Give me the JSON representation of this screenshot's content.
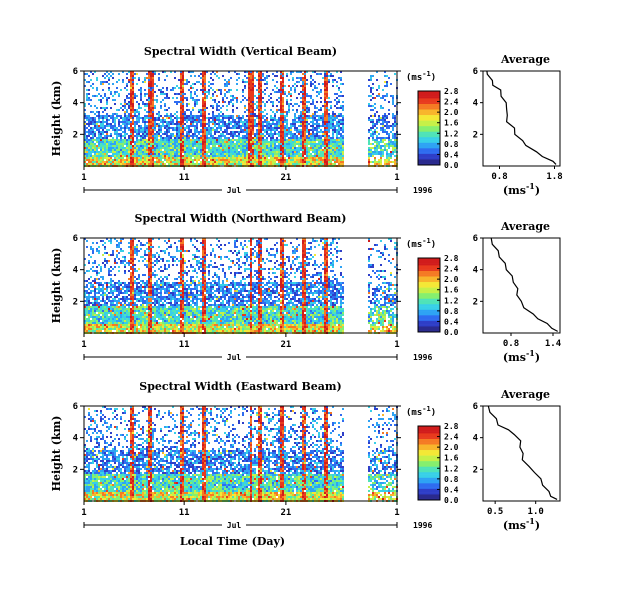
{
  "chart_data": [
    {
      "type": "heatmap",
      "title": "Spectral Width (Vertical Beam)",
      "ylabel": "Height (km)",
      "yticks": [
        "6",
        "4",
        "2"
      ],
      "ylim": [
        0,
        6
      ],
      "xticks": [
        "1",
        "11",
        "21",
        "1"
      ],
      "month_label": "Jul",
      "year_label": "1996",
      "colorbar": {
        "unit": "(ms",
        "unit_exp": "-1",
        "unit_close": ")",
        "ticks": [
          "2.8",
          "2.4",
          "2.0",
          "1.6",
          "1.2",
          "0.8",
          "0.4",
          "0.0"
        ],
        "range": [
          0,
          2.8
        ]
      },
      "profile": {
        "title": "Average",
        "xticks": [
          "0.8",
          "1.8"
        ],
        "xlim": [
          0.5,
          1.9
        ],
        "yticks": [
          "6",
          "4",
          "2"
        ],
        "xlabel": "(ms",
        "xlabel_exp": "-1",
        "xlabel_close": ")",
        "points": [
          [
            0.55,
            6.0
          ],
          [
            0.6,
            5.8
          ],
          [
            0.65,
            5.4
          ],
          [
            0.7,
            5.1
          ],
          [
            0.8,
            4.8
          ],
          [
            0.85,
            4.4
          ],
          [
            0.9,
            4.0
          ],
          [
            0.95,
            3.6
          ],
          [
            0.92,
            3.2
          ],
          [
            0.95,
            2.8
          ],
          [
            1.05,
            2.4
          ],
          [
            1.1,
            2.0
          ],
          [
            1.2,
            1.6
          ],
          [
            1.3,
            1.3
          ],
          [
            1.45,
            0.9
          ],
          [
            1.6,
            0.6
          ],
          [
            1.75,
            0.3
          ],
          [
            1.85,
            0.1
          ]
        ]
      }
    },
    {
      "type": "heatmap",
      "title": "Spectral Width (Northward Beam)",
      "ylabel": "Height (km)",
      "yticks": [
        "6",
        "4",
        "2"
      ],
      "ylim": [
        0,
        6
      ],
      "xticks": [
        "1",
        "11",
        "21",
        "1"
      ],
      "month_label": "Jul",
      "year_label": "1996",
      "colorbar": {
        "unit": "(ms",
        "unit_exp": "-1",
        "unit_close": ")",
        "ticks": [
          "2.8",
          "2.4",
          "2.0",
          "1.6",
          "1.2",
          "0.8",
          "0.4",
          "0.0"
        ],
        "range": [
          0,
          2.8
        ]
      },
      "profile": {
        "title": "Average",
        "xticks": [
          "0.8",
          "1.4"
        ],
        "xlim": [
          0.4,
          1.5
        ],
        "yticks": [
          "6",
          "4",
          "2"
        ],
        "xlabel": "(ms",
        "xlabel_exp": "-1",
        "xlabel_close": ")",
        "points": [
          [
            0.5,
            6.0
          ],
          [
            0.55,
            5.6
          ],
          [
            0.6,
            5.2
          ],
          [
            0.65,
            4.8
          ],
          [
            0.7,
            4.4
          ],
          [
            0.75,
            4.0
          ],
          [
            0.8,
            3.6
          ],
          [
            0.85,
            3.2
          ],
          [
            0.88,
            2.8
          ],
          [
            0.9,
            2.4
          ],
          [
            0.93,
            2.0
          ],
          [
            1.0,
            1.6
          ],
          [
            1.1,
            1.2
          ],
          [
            1.2,
            0.9
          ],
          [
            1.3,
            0.6
          ],
          [
            1.4,
            0.3
          ],
          [
            1.45,
            0.1
          ]
        ]
      }
    },
    {
      "type": "heatmap",
      "title": "Spectral Width (Eastward Beam)",
      "ylabel": "Height (km)",
      "yticks": [
        "6",
        "4",
        "2"
      ],
      "ylim": [
        0,
        6
      ],
      "xticks": [
        "1",
        "11",
        "21",
        "1"
      ],
      "month_label": "Jul",
      "year_label": "1996",
      "xlabel": "Local Time (Day)",
      "colorbar": {
        "unit": "(ms",
        "unit_exp": "-1",
        "unit_close": ")",
        "ticks": [
          "2.8",
          "2.4",
          "2.0",
          "1.6",
          "1.2",
          "0.8",
          "0.4",
          "0.0"
        ],
        "range": [
          0,
          2.8
        ]
      },
      "profile": {
        "title": "Average",
        "xticks": [
          "0.5",
          "1.0"
        ],
        "xlim": [
          0.35,
          1.3
        ],
        "yticks": [
          "6",
          "4",
          "2"
        ],
        "xlabel": "(ms",
        "xlabel_exp": "-1",
        "xlabel_close": ")",
        "points": [
          [
            0.4,
            6.0
          ],
          [
            0.45,
            5.6
          ],
          [
            0.5,
            5.2
          ],
          [
            0.55,
            4.8
          ],
          [
            0.65,
            4.5
          ],
          [
            0.75,
            4.2
          ],
          [
            0.8,
            3.8
          ],
          [
            0.82,
            3.4
          ],
          [
            0.83,
            3.0
          ],
          [
            0.85,
            2.6
          ],
          [
            0.9,
            2.2
          ],
          [
            1.0,
            1.8
          ],
          [
            1.05,
            1.4
          ],
          [
            1.1,
            1.0
          ],
          [
            1.15,
            0.6
          ],
          [
            1.2,
            0.3
          ],
          [
            1.25,
            0.1
          ]
        ]
      }
    }
  ]
}
